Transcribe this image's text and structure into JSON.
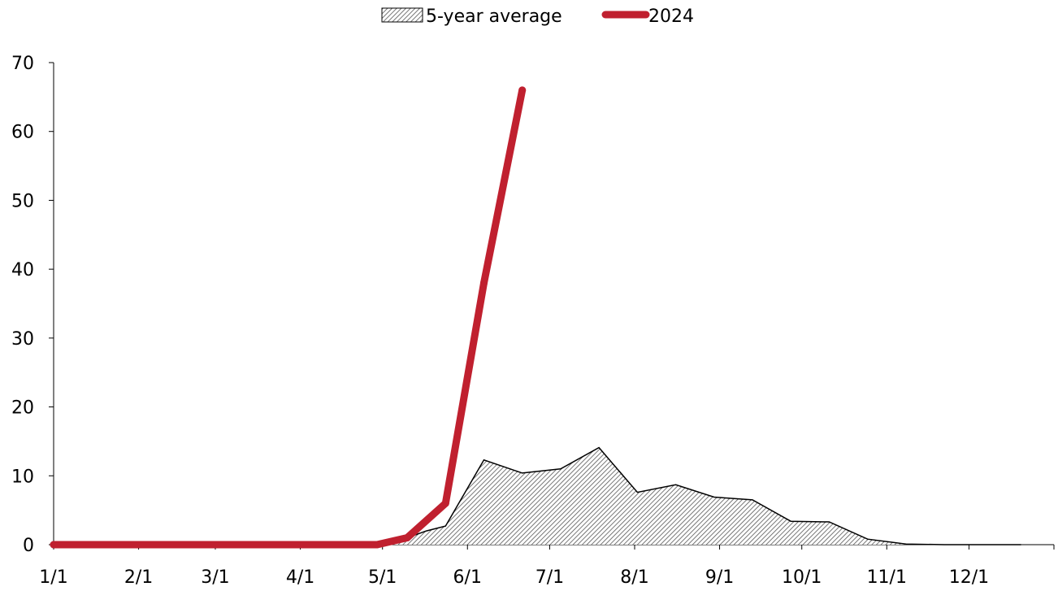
{
  "chart_data": {
    "type": "area",
    "x_axis": {
      "type": "date",
      "ticks": [
        "1/1",
        "2/1",
        "3/1",
        "4/1",
        "5/1",
        "6/1",
        "7/1",
        "8/1",
        "9/1",
        "10/1",
        "11/1",
        "12/1"
      ]
    },
    "y_axis": {
      "ylim": [
        0,
        70
      ],
      "ticks": [
        0,
        10,
        20,
        30,
        40,
        50,
        60,
        70
      ]
    },
    "grid": false,
    "legend": {
      "placement": "top-center",
      "entries": [
        "5-year average",
        "2024"
      ]
    },
    "series": [
      {
        "name": "5-year average",
        "type": "area",
        "color": "#000000",
        "fill": "hatched",
        "points": [
          {
            "x": "1/1",
            "y": 0
          },
          {
            "x": "2/1",
            "y": 0
          },
          {
            "x": "3/1",
            "y": 0
          },
          {
            "x": "4/1",
            "y": 0
          },
          {
            "x": "4/29",
            "y": 0
          },
          {
            "x": "5/10",
            "y": 1
          },
          {
            "x": "5/17",
            "y": 2
          },
          {
            "x": "5/24",
            "y": 2.7
          },
          {
            "x": "6/7",
            "y": 12.3
          },
          {
            "x": "6/21",
            "y": 10.4
          },
          {
            "x": "7/5",
            "y": 11
          },
          {
            "x": "7/19",
            "y": 14.1
          },
          {
            "x": "8/2",
            "y": 7.6
          },
          {
            "x": "8/16",
            "y": 8.7
          },
          {
            "x": "8/30",
            "y": 6.9
          },
          {
            "x": "9/13",
            "y": 6.5
          },
          {
            "x": "9/27",
            "y": 3.4
          },
          {
            "x": "10/11",
            "y": 3.3
          },
          {
            "x": "10/25",
            "y": 0.8
          },
          {
            "x": "11/8",
            "y": 0.1
          },
          {
            "x": "11/22",
            "y": 0
          },
          {
            "x": "12/20",
            "y": 0
          }
        ]
      },
      {
        "name": "2024",
        "type": "line",
        "color": "#c0202f",
        "points": [
          {
            "x": "1/1",
            "y": 0
          },
          {
            "x": "4/29",
            "y": 0
          },
          {
            "x": "5/10",
            "y": 1
          },
          {
            "x": "5/24",
            "y": 6
          },
          {
            "x": "6/7",
            "y": 38
          },
          {
            "x": "6/21",
            "y": 66
          }
        ]
      }
    ]
  }
}
